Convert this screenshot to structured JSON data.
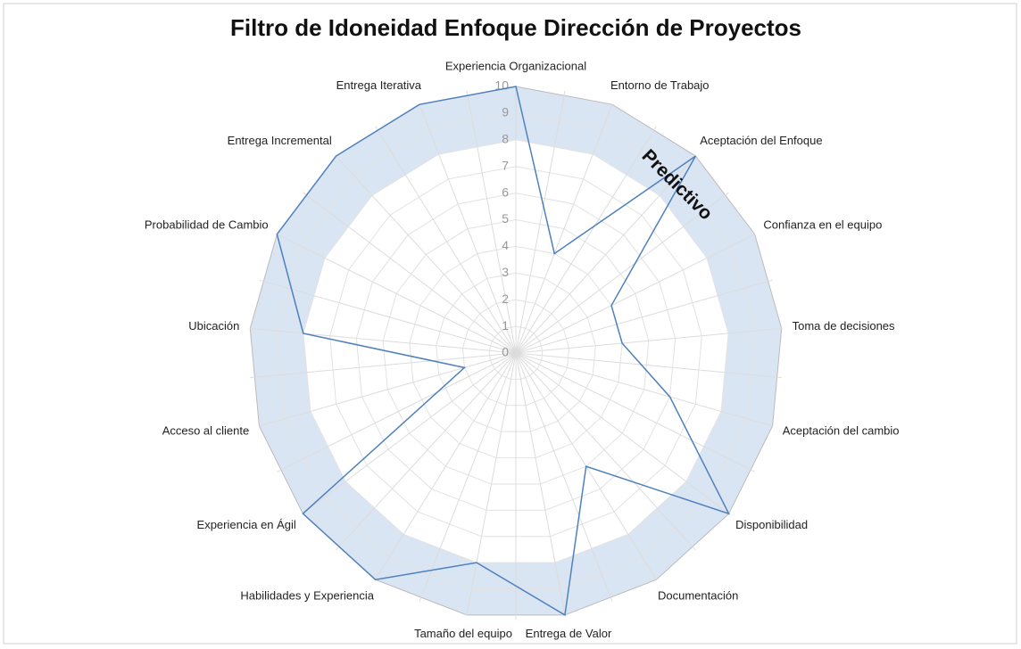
{
  "chart_data": {
    "type": "radar",
    "title": "Filtro de Idoneidad Enfoque Dirección de Proyectos",
    "categories": [
      "Experiencia Organizacional",
      "Entorno de Trabajo",
      "Aceptación del Enfoque",
      "Confianza en el equipo",
      "Toma de decisiones",
      "Aceptación del cambio",
      "Disponibilidad",
      "Documentación",
      "Entrega de Valor",
      "Tamaño del equipo",
      "Habilidades y Experiencia",
      "Experiencia en Ágil",
      "Acceso al cliente",
      "Ubicación",
      "Probabilidad de Cambio",
      "Entrega Incremental",
      "Entrega Iterativa"
    ],
    "values": [
      10,
      4,
      10,
      4,
      4,
      6,
      10,
      5,
      10,
      8,
      10,
      10,
      2,
      8,
      10,
      10,
      10
    ],
    "color": "#4f81bd",
    "band": [
      8,
      10
    ],
    "band_color": "#dae5f4",
    "annotation": "Predictivo",
    "ylim": [
      0,
      10
    ],
    "yticks": [
      0,
      1,
      2,
      3,
      4,
      5,
      6,
      7,
      8,
      9,
      10
    ],
    "grid": true
  }
}
